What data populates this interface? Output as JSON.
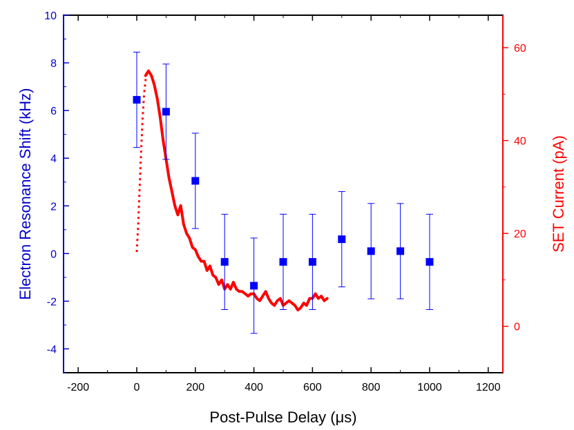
{
  "chart_data": {
    "type": "scatter",
    "title": "",
    "xlabel": "Post-Pulse Delay (μs)",
    "xlim": [
      -250,
      1250
    ],
    "xticks": [
      -200,
      0,
      200,
      400,
      600,
      800,
      1000,
      1200
    ],
    "ylabel_left": "Electron Resonance Shift (kHz)",
    "ylim_left": [
      -5,
      10
    ],
    "yticks_left": [
      -4,
      -2,
      0,
      2,
      4,
      6,
      8,
      10
    ],
    "ylabel_right": "SET Current (pA)",
    "ylim_right": [
      -10,
      67
    ],
    "yticks_right": [
      0,
      20,
      40,
      60
    ],
    "colors": {
      "left_axis": "#0000cc",
      "right_axis": "#ff0000",
      "frame": "#000000"
    },
    "series": [
      {
        "name": "Electron Resonance Shift",
        "axis": "left",
        "marker": "square",
        "color": "#0000ff",
        "x": [
          0,
          100,
          200,
          300,
          400,
          500,
          600,
          700,
          800,
          900,
          1000
        ],
        "y": [
          6.45,
          5.95,
          3.05,
          -0.35,
          -1.35,
          -0.35,
          -0.35,
          0.6,
          0.1,
          0.1,
          -0.35
        ],
        "err": [
          2.0,
          2.0,
          2.0,
          2.0,
          2.0,
          2.0,
          2.0,
          2.0,
          2.0,
          2.0,
          2.0
        ]
      },
      {
        "name": "SET Current (rise)",
        "axis": "right",
        "style": "dotted",
        "color": "#ff0000",
        "x": [
          0,
          5,
          10,
          15,
          20,
          25,
          30,
          35
        ],
        "y": [
          16,
          22,
          30,
          38,
          45,
          50,
          53,
          55
        ]
      },
      {
        "name": "SET Current",
        "axis": "right",
        "style": "solid",
        "color": "#ff0000",
        "x": [
          30,
          40,
          50,
          60,
          70,
          80,
          90,
          100,
          110,
          120,
          130,
          140,
          150,
          160,
          170,
          180,
          190,
          200,
          210,
          220,
          230,
          240,
          250,
          260,
          270,
          280,
          290,
          300,
          310,
          320,
          330,
          340,
          350,
          360,
          370,
          380,
          390,
          400,
          410,
          420,
          430,
          440,
          450,
          460,
          470,
          480,
          490,
          500,
          510,
          520,
          530,
          540,
          550,
          560,
          570,
          580,
          590,
          600,
          610,
          620,
          630,
          640,
          650
        ],
        "y": [
          54,
          55,
          54,
          52,
          49,
          45,
          40,
          36,
          32,
          29,
          26,
          24,
          26,
          22,
          20,
          19,
          17,
          16.5,
          15,
          14,
          14,
          12,
          13,
          11,
          10.5,
          9,
          10,
          8,
          9,
          8,
          9.5,
          8,
          7.5,
          7.5,
          7,
          6.5,
          7,
          7,
          6,
          5.5,
          6.5,
          7.5,
          6,
          5,
          4.5,
          5.5,
          6,
          4.5,
          5,
          5.5,
          5,
          4.5,
          3.5,
          4,
          5,
          4.5,
          6,
          6,
          7,
          6,
          6.5,
          5.5,
          6
        ]
      }
    ]
  }
}
